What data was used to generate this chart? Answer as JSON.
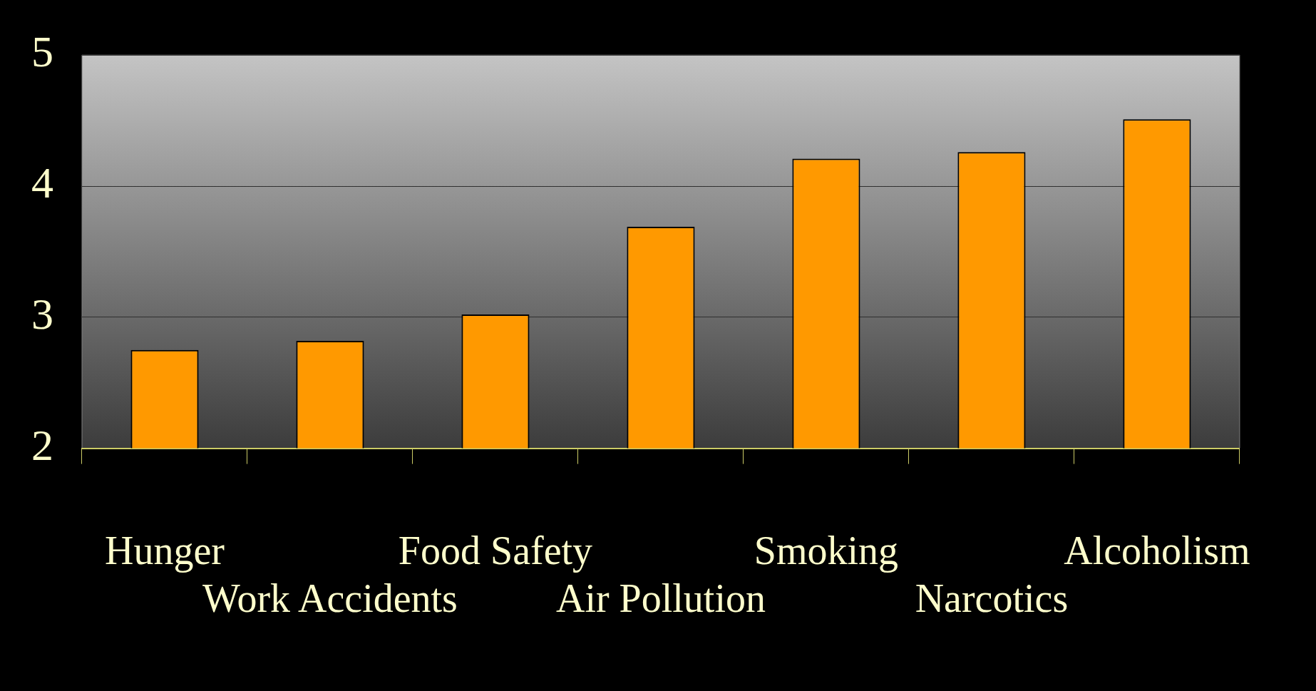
{
  "chart_data": {
    "type": "bar",
    "categories": [
      "Hunger",
      "Work Accidents",
      "Food Safety",
      "Air Pollution",
      "Smoking",
      "Narcotics",
      "Alcoholism"
    ],
    "values": [
      2.75,
      2.82,
      3.02,
      3.69,
      4.21,
      4.26,
      4.51
    ],
    "color": "#ff9900",
    "ylim": [
      2,
      5
    ],
    "yticks": [
      2,
      3,
      4,
      5
    ],
    "grid": "y",
    "legend": false
  }
}
